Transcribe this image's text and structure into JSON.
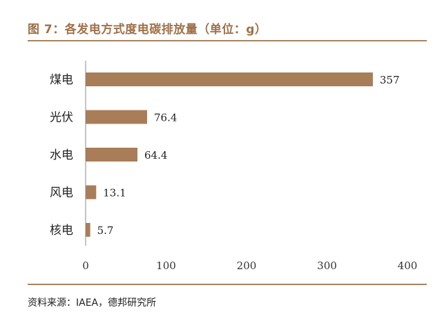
{
  "header": {
    "title": "图 7：各发电方式度电碳排放量（单位：g）"
  },
  "footer": {
    "source": "资料来源：IAEA，德邦研究所"
  },
  "colors": {
    "bar": "#a87d58",
    "rule": "#a8835f",
    "title": "#a0714a",
    "axis": "#333333"
  },
  "chart_data": {
    "type": "bar",
    "orientation": "horizontal",
    "title": "图 7：各发电方式度电碳排放量（单位：g）",
    "categories": [
      "煤电",
      "光伏",
      "水电",
      "风电",
      "核电"
    ],
    "values": [
      357,
      76.4,
      64.4,
      13.1,
      5.7
    ],
    "value_labels": [
      "357",
      "76.4",
      "64.4",
      "13.1",
      "5.7"
    ],
    "xlim": [
      0,
      400
    ],
    "xticks": [
      0,
      100,
      200,
      300,
      400
    ],
    "grid": false,
    "legend": "none"
  }
}
